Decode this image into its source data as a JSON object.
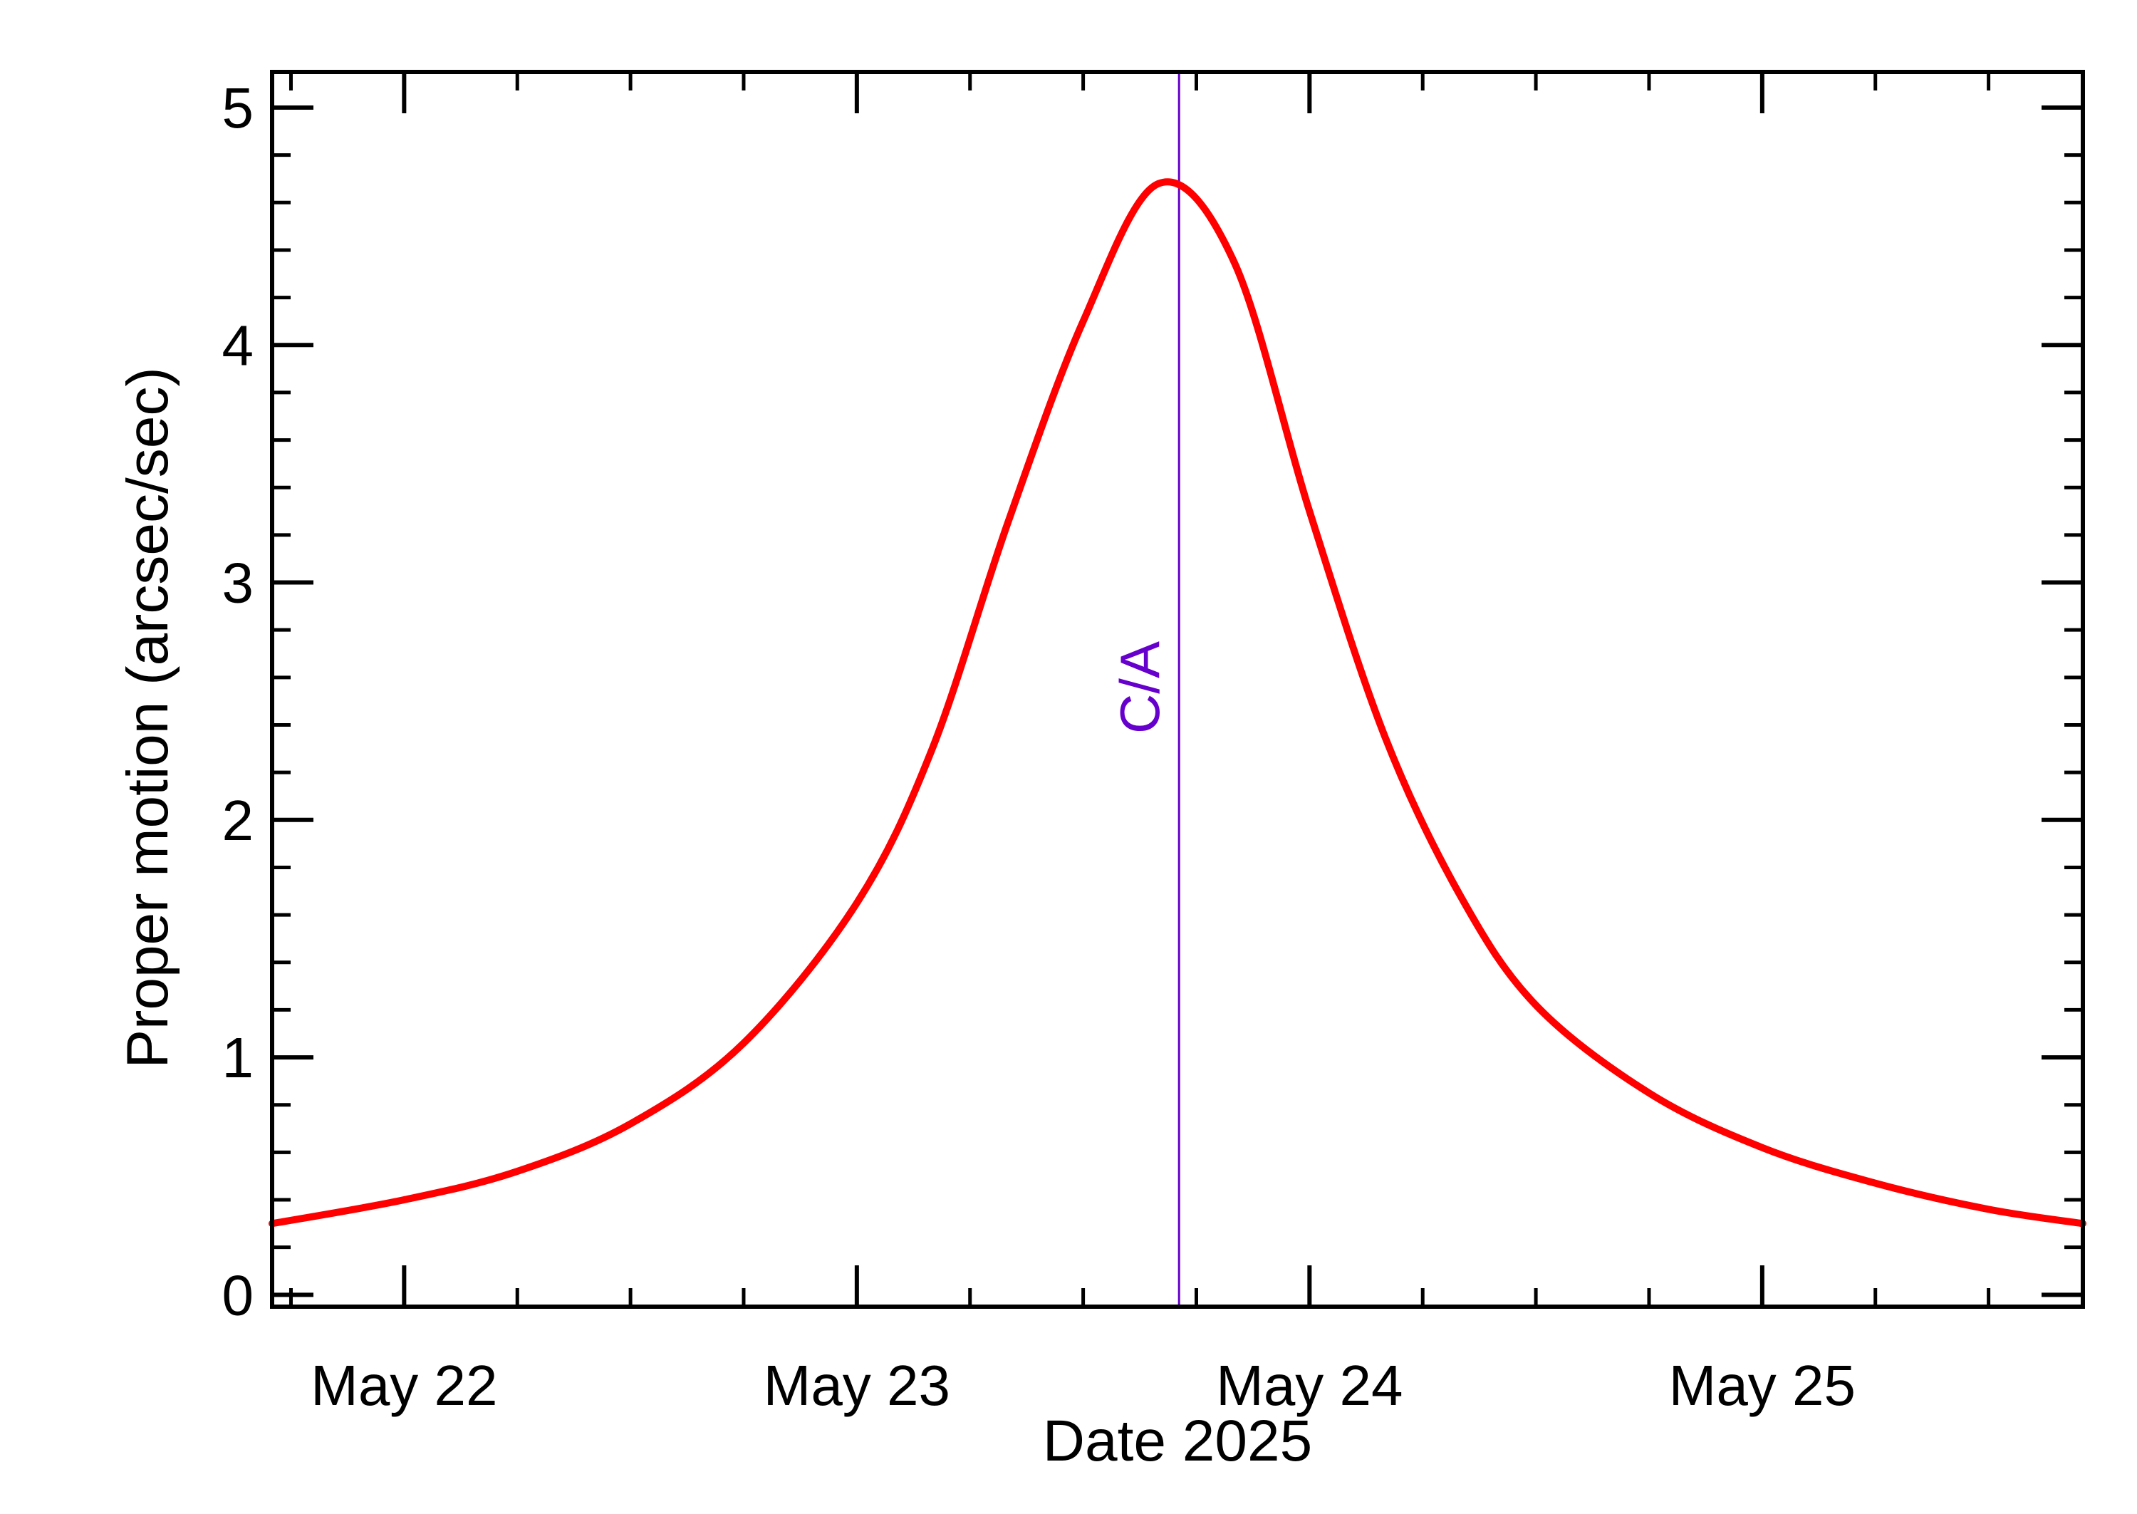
{
  "chart_data": {
    "type": "line",
    "title": "",
    "xlabel": "Date 2025",
    "ylabel": "Proper motion (arcsec/sec)",
    "xlim": [
      "2025-05-21 17:00",
      "2025-05-25 17:00"
    ],
    "ylim": [
      -0.05,
      5.15
    ],
    "x_ticks": [
      {
        "date": "2025-05-22",
        "label": "May 22"
      },
      {
        "date": "2025-05-23",
        "label": "May 23"
      },
      {
        "date": "2025-05-24",
        "label": "May 24"
      },
      {
        "date": "2025-05-25",
        "label": "May 25"
      }
    ],
    "y_ticks": [
      0,
      1,
      2,
      3,
      4,
      5
    ],
    "y_tick_labels": [
      "0",
      "1",
      "2",
      "3",
      "4",
      "5"
    ],
    "grid": false,
    "series": [
      {
        "name": "",
        "color": "#ff0000",
        "points": [
          {
            "x": "2025-05-21 17:00",
            "y": 0.3
          },
          {
            "x": "2025-05-22 00:00",
            "y": 0.4
          },
          {
            "x": "2025-05-22 06:00",
            "y": 0.52
          },
          {
            "x": "2025-05-22 12:00",
            "y": 0.72
          },
          {
            "x": "2025-05-22 18:00",
            "y": 1.06
          },
          {
            "x": "2025-05-23 00:00",
            "y": 1.65
          },
          {
            "x": "2025-05-23 04:00",
            "y": 2.3
          },
          {
            "x": "2025-05-23 08:00",
            "y": 3.25
          },
          {
            "x": "2025-05-23 12:00",
            "y": 4.1
          },
          {
            "x": "2025-05-23 16:00",
            "y": 4.68
          },
          {
            "x": "2025-05-23 20:00",
            "y": 4.35
          },
          {
            "x": "2025-05-24 00:00",
            "y": 3.3
          },
          {
            "x": "2025-05-24 04:00",
            "y": 2.35
          },
          {
            "x": "2025-05-24 08:00",
            "y": 1.68
          },
          {
            "x": "2025-05-24 12:00",
            "y": 1.22
          },
          {
            "x": "2025-05-24 18:00",
            "y": 0.85
          },
          {
            "x": "2025-05-25 00:00",
            "y": 0.62
          },
          {
            "x": "2025-05-25 06:00",
            "y": 0.47
          },
          {
            "x": "2025-05-25 12:00",
            "y": 0.36
          },
          {
            "x": "2025-05-25 17:00",
            "y": 0.3
          }
        ]
      }
    ],
    "markers": [
      {
        "label": "C/A",
        "x": "2025-05-23 17:05",
        "color": "#6600cc"
      }
    ],
    "axis_color": "#000000"
  }
}
